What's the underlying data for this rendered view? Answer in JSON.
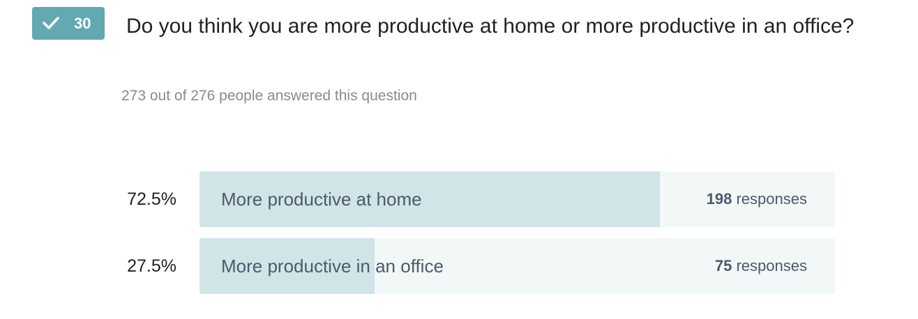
{
  "badge": {
    "number": 30
  },
  "question": "Do you think you are more productive at home or more productive in an office?",
  "answered_note": "273 out of 276 people answered this question",
  "options": [
    {
      "percent": {
        "value": 72.5,
        "label": "72.5%"
      },
      "label": "More productive at home",
      "count": 198,
      "count_unit": "responses"
    },
    {
      "percent": {
        "value": 27.5,
        "label": "27.5%"
      },
      "label": "More productive in an office",
      "count": 75,
      "count_unit": "responses"
    }
  ]
}
